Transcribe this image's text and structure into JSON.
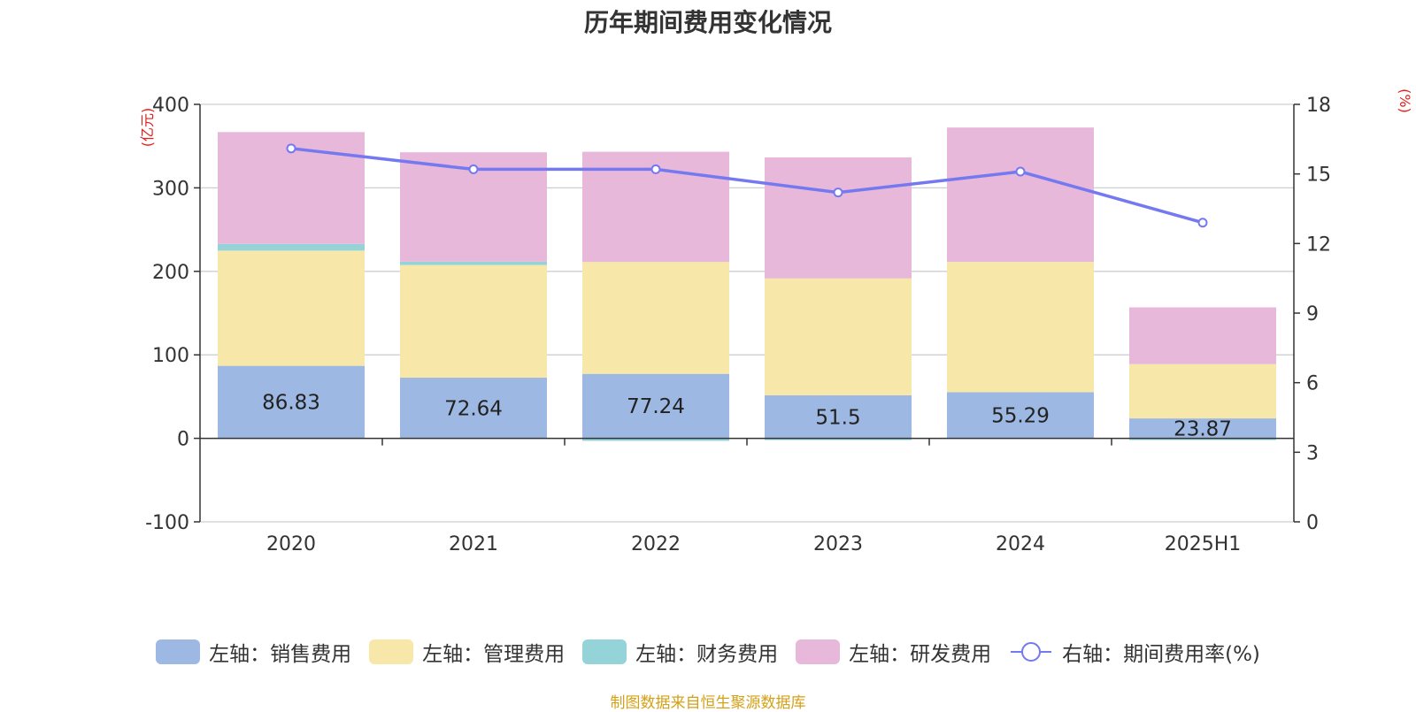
{
  "chart_data": {
    "type": "bar",
    "title": "历年期间费用变化情况",
    "categories": [
      "2020",
      "2021",
      "2022",
      "2023",
      "2024",
      "2025H1"
    ],
    "series": [
      {
        "name": "左轴：销售费用",
        "axis": "left",
        "color": "#9db8e2",
        "values": [
          86.83,
          72.64,
          77.24,
          51.5,
          55.29,
          23.87
        ],
        "labels": [
          "86.83",
          "72.64",
          "77.24",
          "51.5",
          "55.29",
          "23.87"
        ]
      },
      {
        "name": "左轴：管理费用",
        "axis": "left",
        "color": "#f7e7a9",
        "values": [
          138,
          135,
          134,
          140,
          156,
          65
        ]
      },
      {
        "name": "左轴：财务费用",
        "axis": "left",
        "color": "#94d3d7",
        "values": [
          8,
          4,
          -3,
          -2,
          0,
          -2
        ]
      },
      {
        "name": "左轴：研发费用",
        "axis": "left",
        "color": "#e8b8da",
        "values": [
          134,
          131,
          132,
          145,
          161,
          68
        ]
      },
      {
        "name": "右轴：期间费用率(%)",
        "axis": "right",
        "type": "line",
        "color": "#7479f0",
        "values": [
          16.1,
          15.2,
          15.2,
          14.2,
          15.1,
          12.9
        ]
      }
    ],
    "y_left": {
      "label": "(亿元)",
      "min": -100,
      "max": 400,
      "ticks": [
        "-100",
        "0",
        "100",
        "200",
        "300",
        "400"
      ]
    },
    "y_right": {
      "label": "(%)",
      "min": 0,
      "max": 18,
      "ticks": [
        "0",
        "3",
        "6",
        "9",
        "12",
        "15",
        "18"
      ]
    },
    "grid": true,
    "legend_position": "bottom"
  },
  "source_note": "制图数据来自恒生聚源数据库"
}
